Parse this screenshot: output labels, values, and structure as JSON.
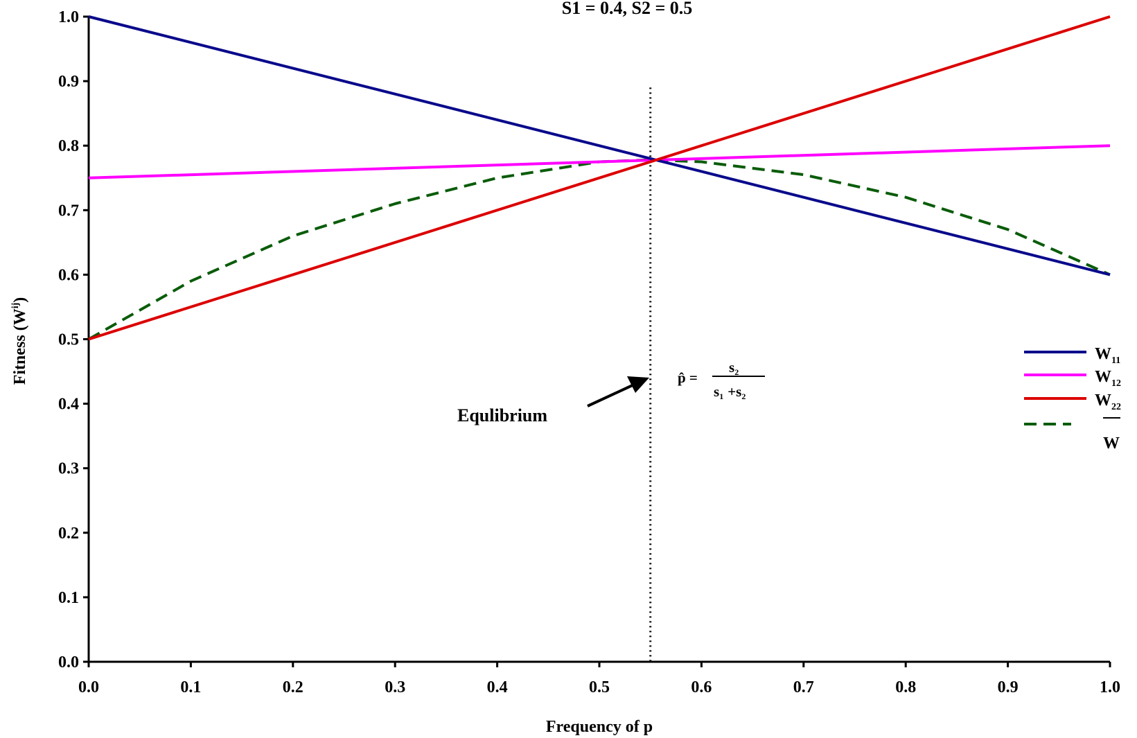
{
  "chart_data": {
    "type": "line",
    "title": "S1 = 0.4, S2 = 0.5",
    "xlabel": "Frequency of p",
    "ylabel": "Fitness (Wij)",
    "ylabel_main": "Fitness (W",
    "ylabel_sup": "ij",
    "ylabel_close": ")",
    "xlim": [
      0.0,
      1.0
    ],
    "ylim": [
      0.0,
      1.0
    ],
    "xticks": [
      "0.0",
      "0.1",
      "0.2",
      "0.3",
      "0.4",
      "0.5",
      "0.6",
      "0.7",
      "0.8",
      "0.9",
      "1.0"
    ],
    "yticks": [
      "0.0",
      "0.1",
      "0.2",
      "0.3",
      "0.4",
      "0.5",
      "0.6",
      "0.7",
      "0.8",
      "0.9",
      "1.0"
    ],
    "grid": false,
    "legend_position": "right",
    "series": [
      {
        "name": "W11",
        "base": "W",
        "sub": "11",
        "color": "#0a0a8c",
        "dash": "solid",
        "x": [
          0,
          1
        ],
        "y": [
          1.0,
          0.6
        ]
      },
      {
        "name": "W12",
        "base": "W",
        "sub": "12",
        "color": "#ff00ff",
        "dash": "solid",
        "x": [
          0,
          1
        ],
        "y": [
          0.75,
          0.8
        ]
      },
      {
        "name": "W22",
        "base": "W",
        "sub": "22",
        "color": "#dc0000",
        "dash": "solid",
        "x": [
          0,
          1
        ],
        "y": [
          0.5,
          1.0
        ]
      },
      {
        "name": "W̄",
        "base": "W",
        "sub": "",
        "overline": true,
        "color": "#0a5c0a",
        "dash": "dashed",
        "x": [
          0,
          0.1,
          0.2,
          0.3,
          0.4,
          0.5,
          0.55,
          0.6,
          0.7,
          0.8,
          0.9,
          1.0
        ],
        "y": [
          0.5,
          0.59,
          0.66,
          0.71,
          0.75,
          0.775,
          0.778,
          0.775,
          0.755,
          0.72,
          0.67,
          0.6
        ]
      }
    ],
    "equilibrium": {
      "x": 0.55,
      "y_top": 0.89
    },
    "annotations": {
      "equilibrium_label": "Equlibrium",
      "formula_lhs": "p̂ =",
      "formula_num": "s",
      "formula_num_sub": "2",
      "formula_den_a": "s",
      "formula_den_a_sub": "1",
      "formula_den_plus": "+s",
      "formula_den_b_sub": "2"
    }
  }
}
